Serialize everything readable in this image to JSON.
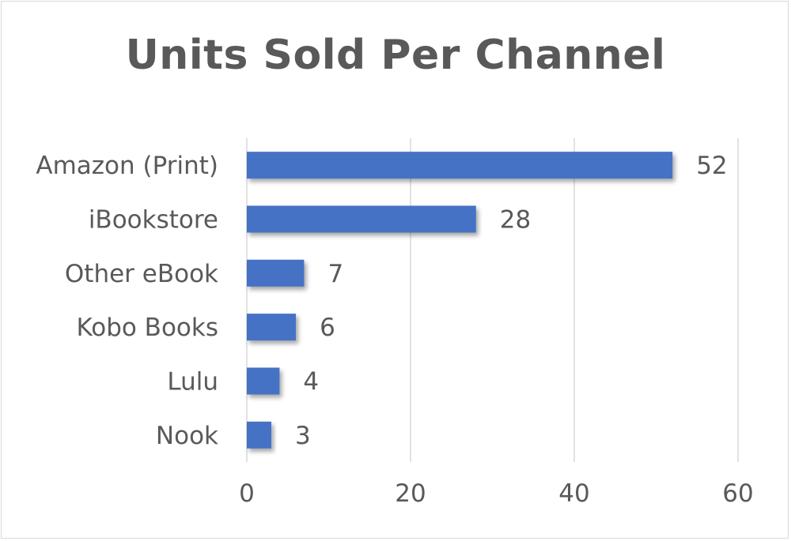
{
  "chart_data": {
    "type": "bar",
    "orientation": "horizontal",
    "title": "Units Sold Per Channel",
    "xlabel": "",
    "ylabel": "",
    "categories": [
      "Amazon (Print)",
      "iBookstore",
      "Other eBook",
      "Kobo Books",
      "Lulu",
      "Nook"
    ],
    "values": [
      52,
      28,
      7,
      6,
      4,
      3
    ],
    "data_labels": [
      "52",
      "28",
      "7",
      "6",
      "4",
      "3"
    ],
    "xlim": [
      0,
      60
    ],
    "x_ticks": [
      0,
      20,
      40,
      60
    ],
    "x_tick_labels": [
      "0",
      "20",
      "40",
      "60"
    ],
    "grid": "vertical",
    "legend": "none",
    "bar_color": "#4472c4"
  }
}
